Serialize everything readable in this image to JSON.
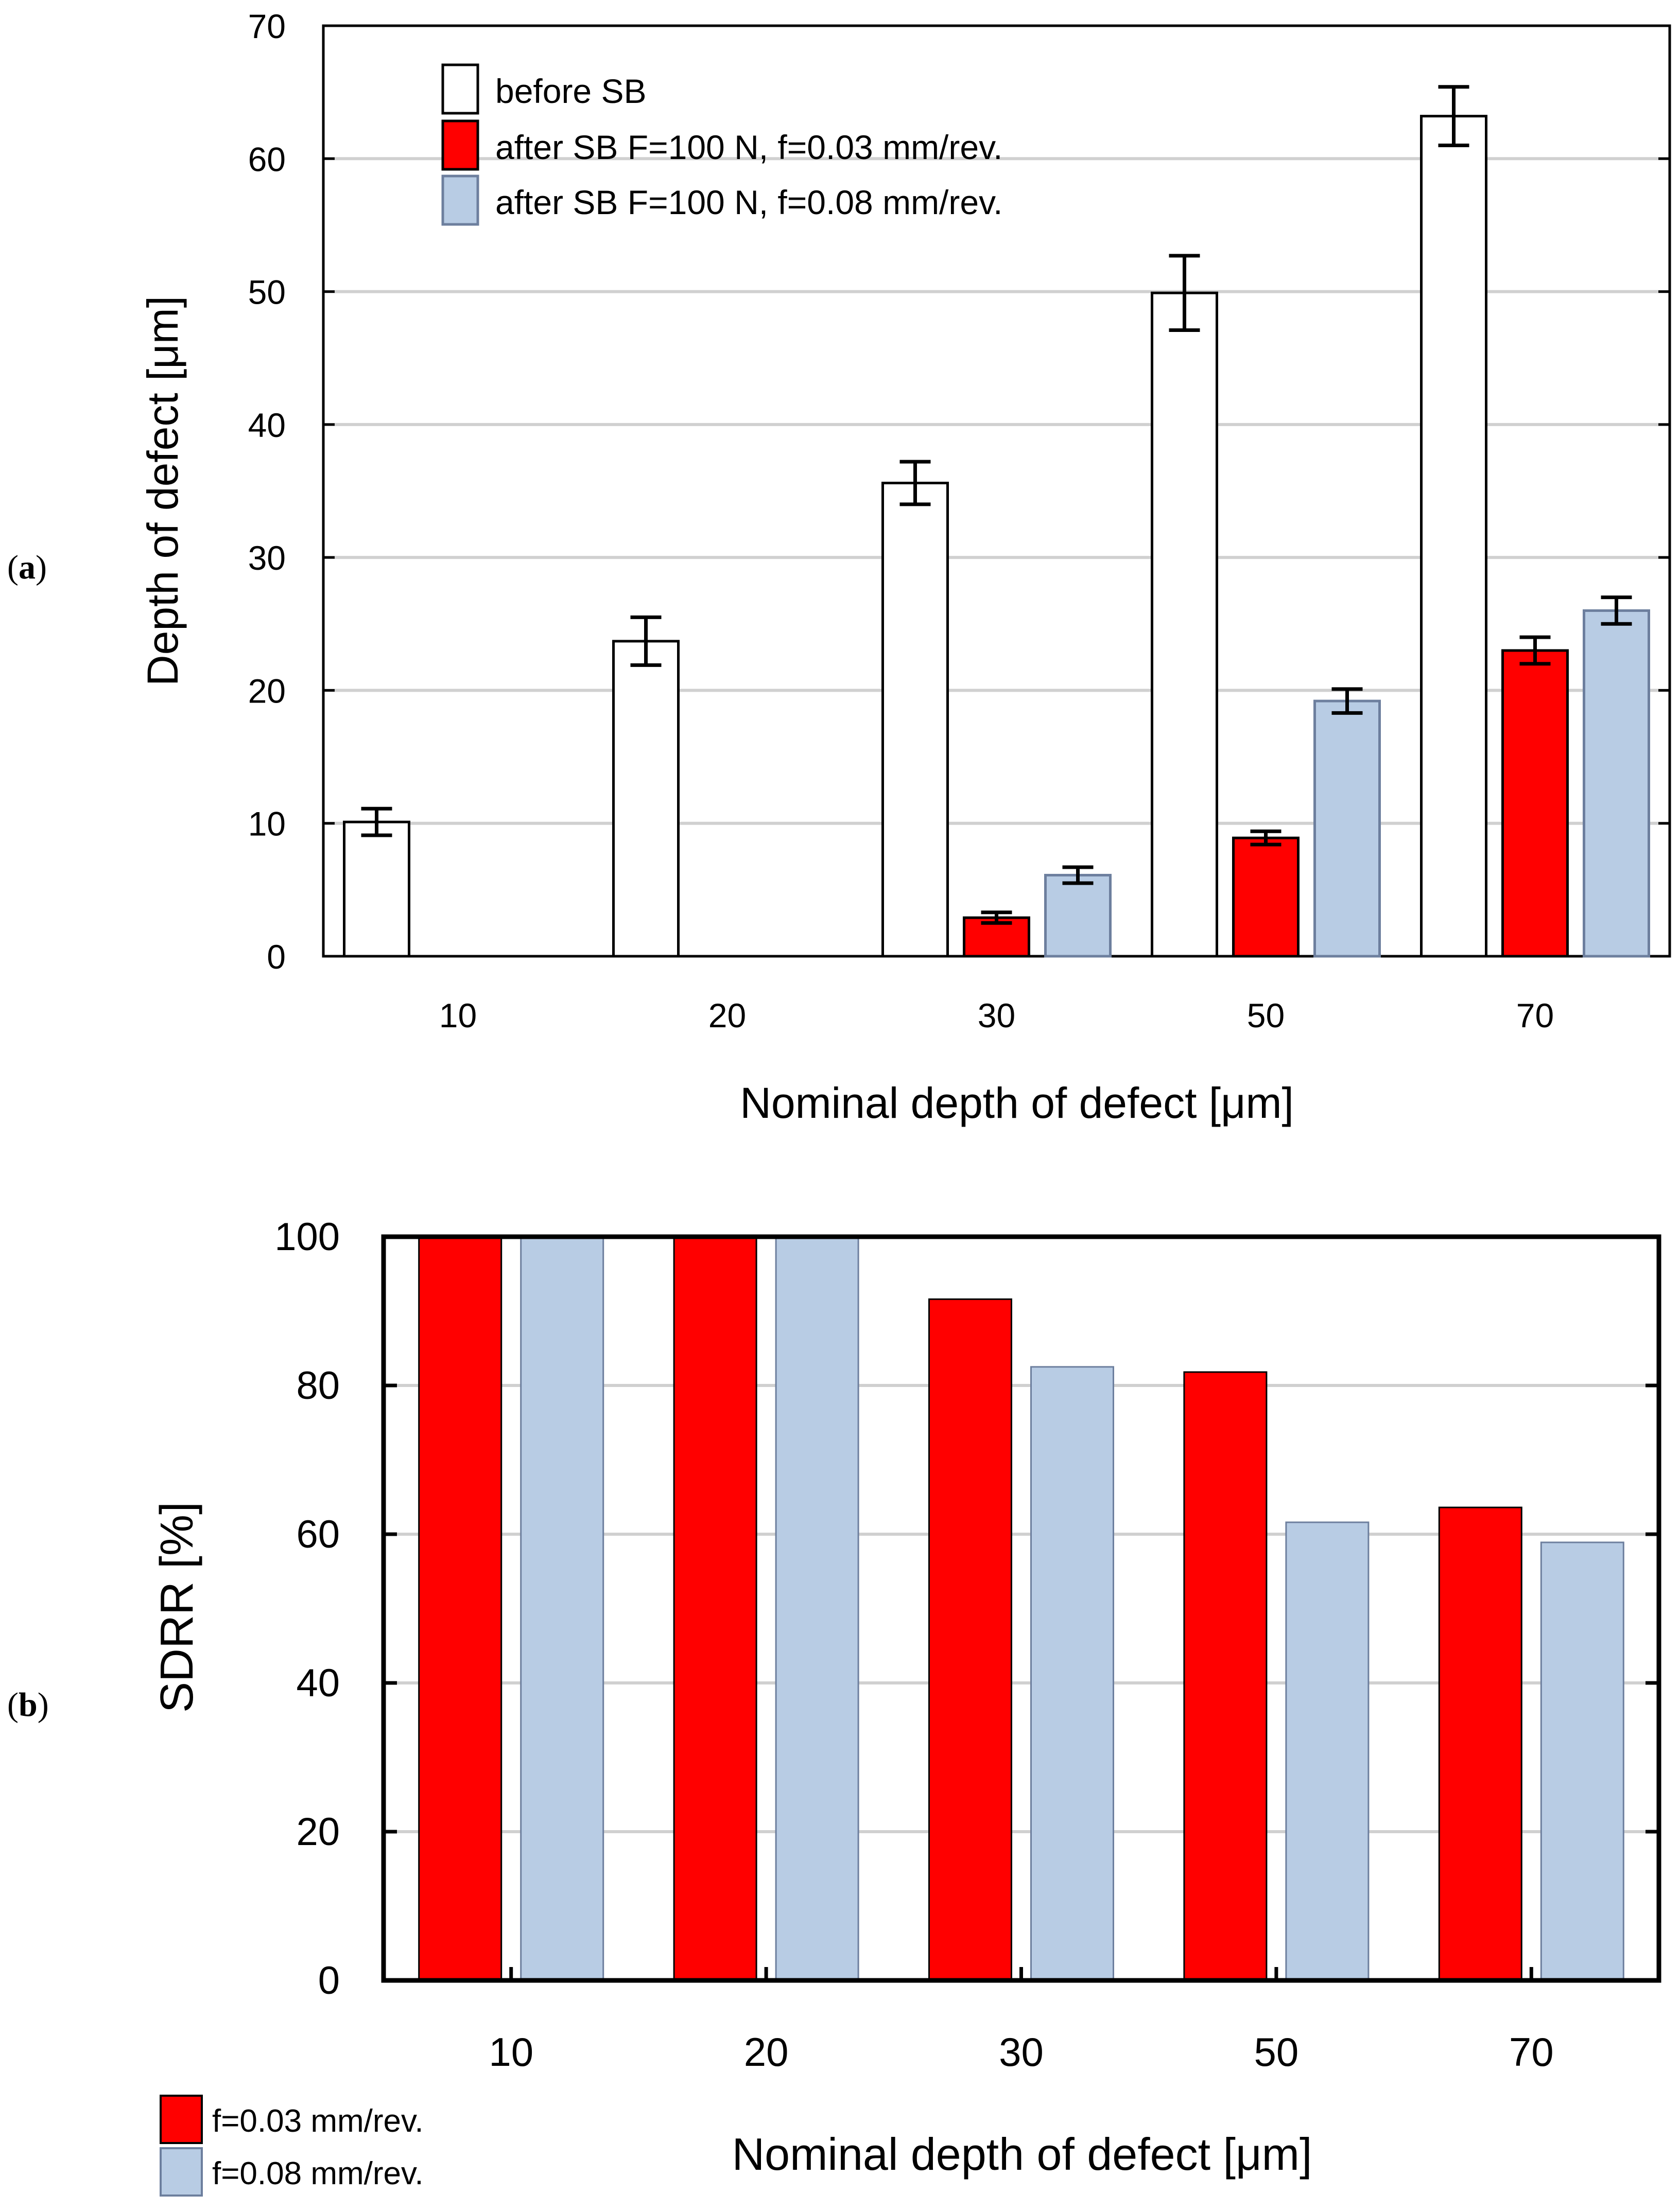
{
  "panel_labels": {
    "a": "a",
    "b": "b"
  },
  "colors": {
    "before": "#ffffff",
    "f003": "#ff0000",
    "f008": "#b8cce4",
    "bar_stroke": "#000000",
    "bar_stroke_blue": "#6d7f9e",
    "grid": "#d0d0d0",
    "axis": "#000000"
  },
  "chart_data": [
    {
      "type": "bar",
      "title": "",
      "xlabel": "Nominal depth of defect [μm]",
      "ylabel": "Depth of defect [μm]",
      "ylim": [
        0,
        70
      ],
      "yticks": [
        0,
        10,
        20,
        30,
        40,
        50,
        60,
        70
      ],
      "categories": [
        "10",
        "20",
        "30",
        "50",
        "70"
      ],
      "legend_position": "top-left",
      "grid": true,
      "series": [
        {
          "name": "before SB",
          "key": "before",
          "values": [
            10.1,
            23.7,
            35.6,
            49.9,
            63.2
          ],
          "errors": [
            1.0,
            1.8,
            1.6,
            2.8,
            2.2
          ]
        },
        {
          "name": "after SB F=100 N, f=0.03 mm/rev.",
          "key": "f003",
          "values": [
            null,
            null,
            2.9,
            8.9,
            23.0
          ],
          "errors": [
            null,
            null,
            0.4,
            0.5,
            1.0
          ]
        },
        {
          "name": "after SB F=100 N, f=0.08 mm/rev.",
          "key": "f008",
          "values": [
            null,
            null,
            6.1,
            19.2,
            26.0
          ],
          "errors": [
            null,
            null,
            0.6,
            0.9,
            1.0
          ]
        }
      ]
    },
    {
      "type": "bar",
      "title": "",
      "xlabel": "Nominal depth of defect [μm]",
      "ylabel": "SDRR [%]",
      "ylim": [
        0,
        100
      ],
      "yticks": [
        0,
        20,
        40,
        60,
        80,
        100
      ],
      "categories": [
        "10",
        "20",
        "30",
        "50",
        "70"
      ],
      "legend_position": "bottom-left",
      "grid": true,
      "series": [
        {
          "name": "f=0.03 mm/rev.",
          "key": "f003",
          "values": [
            100,
            100,
            91.6,
            81.8,
            63.6
          ]
        },
        {
          "name": "f=0.08 mm/rev.",
          "key": "f008",
          "values": [
            100,
            100,
            82.5,
            61.6,
            58.9
          ]
        }
      ]
    }
  ]
}
